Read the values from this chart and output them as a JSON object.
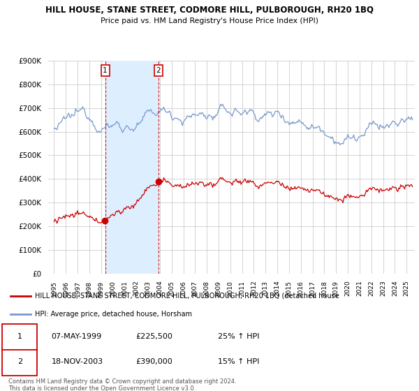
{
  "title": "HILL HOUSE, STANE STREET, CODMORE HILL, PULBOROUGH, RH20 1BQ",
  "subtitle": "Price paid vs. HM Land Registry's House Price Index (HPI)",
  "ylabel_ticks": [
    "£0",
    "£100K",
    "£200K",
    "£300K",
    "£400K",
    "£500K",
    "£600K",
    "£700K",
    "£800K",
    "£900K"
  ],
  "ytick_values": [
    0,
    100000,
    200000,
    300000,
    400000,
    500000,
    600000,
    700000,
    800000,
    900000
  ],
  "ylim": [
    0,
    900000
  ],
  "xlim_start": 1994.5,
  "xlim_end": 2025.7,
  "sale1_year": 1999.35,
  "sale1_price": 225500,
  "sale2_year": 2003.88,
  "sale2_price": 390000,
  "legend_line1": "HILL HOUSE, STANE STREET, CODMORE HILL, PULBOROUGH, RH20 1BQ (detached house",
  "legend_line2": "HPI: Average price, detached house, Horsham",
  "table_row1": [
    "1",
    "07-MAY-1999",
    "£225,500",
    "25% ↑ HPI"
  ],
  "table_row2": [
    "2",
    "18-NOV-2003",
    "£390,000",
    "15% ↑ HPI"
  ],
  "footer": "Contains HM Land Registry data © Crown copyright and database right 2024.\nThis data is licensed under the Open Government Licence v3.0.",
  "red_color": "#cc0000",
  "blue_color": "#7799cc",
  "shade_color": "#ddeeff",
  "background_color": "#ffffff",
  "grid_color": "#cccccc"
}
